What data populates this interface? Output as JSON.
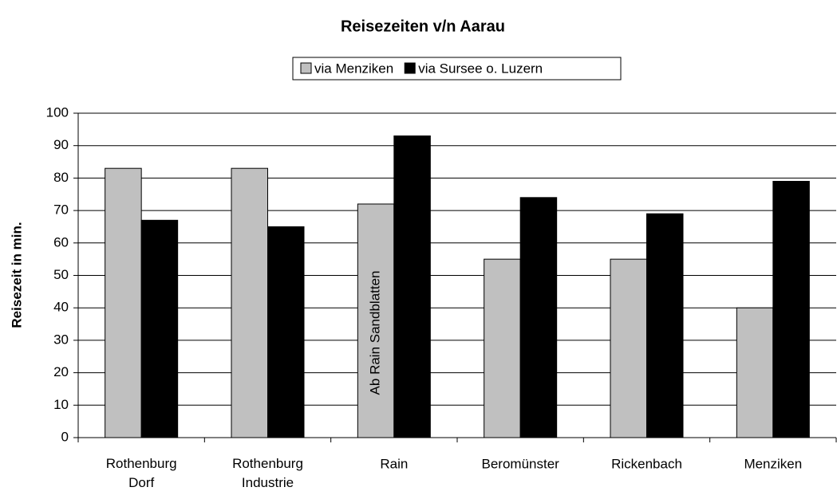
{
  "chart_data": {
    "type": "bar",
    "title": "Reisezeiten v/n Aarau",
    "y_label": "Reisezeit in min.",
    "categories": [
      "Rothenburg Dorf",
      "Rothenburg Industrie",
      "Rain",
      "Beromünster",
      "Rickenbach",
      "Menziken"
    ],
    "series": [
      {
        "name": "via Menziken",
        "color": "#c0c0c0",
        "values": [
          83,
          83,
          72,
          55,
          55,
          40
        ]
      },
      {
        "name": "via Sursee o. Luzern",
        "color": "#000000",
        "values": [
          67,
          65,
          93,
          74,
          69,
          79
        ]
      }
    ],
    "annotations": [
      "Ab Rain Sandblatten"
    ],
    "ylim": [
      0,
      100
    ],
    "yticks": [
      0,
      10,
      20,
      30,
      40,
      50,
      60,
      70,
      80,
      90,
      100
    ],
    "grid": true
  }
}
